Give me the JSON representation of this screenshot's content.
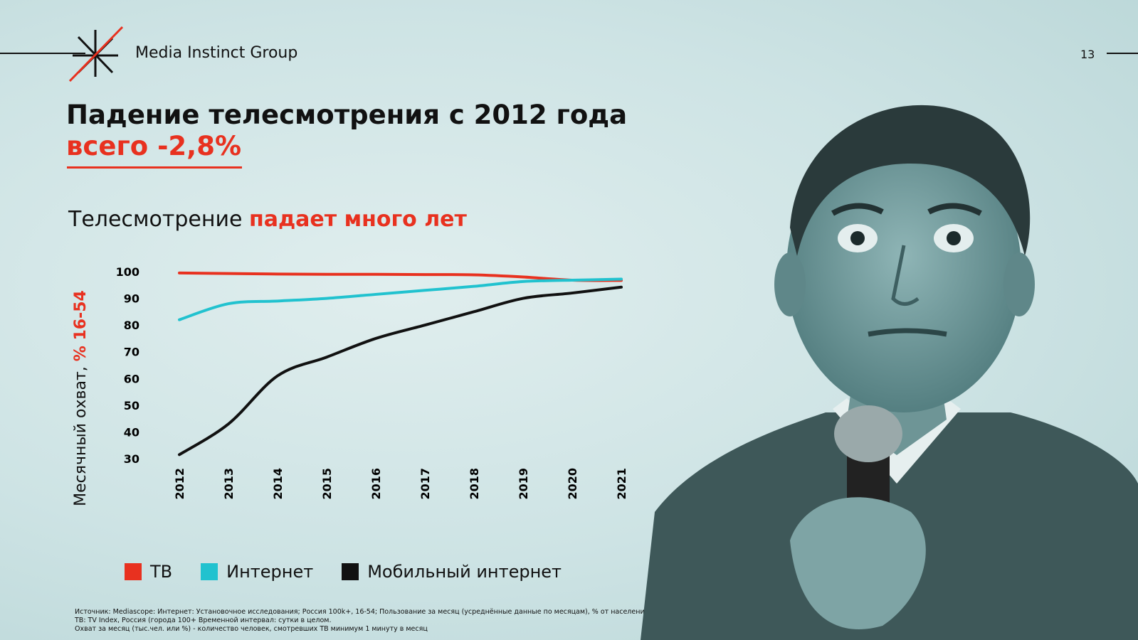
{
  "header": {
    "brand": "Media Instinct Group",
    "page_number": "13"
  },
  "title": {
    "line1": "Падение телесмотрения с 2012 года",
    "line2": "всего -2,8%"
  },
  "subtitle": {
    "plain": "Телесмотрение ",
    "accent": "падает много лет"
  },
  "colors": {
    "accent": "#e8311f",
    "tv": "#e8311f",
    "internet": "#21c2cf",
    "mobile": "#111111"
  },
  "legend": {
    "tv": "ТВ",
    "internet": "Интернет",
    "mobile": "Мобильный интернет"
  },
  "source": {
    "line1": "Источник: Mediascope: Интернет: Установочное исследования; Россия 100k+, 16-54; Пользование за месяц (усреднённые данные по месяцам), % от населения",
    "line2": "ТВ: TV Index, Россия  (города 100+ Временной интервал: сутки в целом.",
    "line3": "Охват за месяц (тыс.чел. или %) - количество человек, смотревших ТВ минимум 1 минуту в месяц"
  },
  "chart_data": {
    "type": "line",
    "ylabel_plain": "Месячный  охват, ",
    "ylabel_accent": "% 16-54",
    "x": [
      "2012",
      "2013",
      "2014",
      "2015",
      "2016",
      "2017",
      "2018",
      "2019",
      "2020",
      "2021"
    ],
    "ylim": [
      30,
      100
    ],
    "yticks": [
      100,
      90,
      80,
      70,
      60,
      50,
      40,
      30
    ],
    "grid": false,
    "series": [
      {
        "name": "ТВ",
        "key": "tv",
        "values": [
          99.5,
          99.3,
          99.1,
          99.0,
          99.0,
          98.9,
          98.8,
          98.0,
          96.8,
          96.7
        ]
      },
      {
        "name": "Интернет",
        "key": "internet",
        "values": [
          82,
          88,
          89,
          90,
          91.5,
          93,
          94.5,
          96.3,
          96.8,
          97.2
        ]
      },
      {
        "name": "Мобильный интернет",
        "key": "mobile",
        "values": [
          31.5,
          43,
          61,
          68,
          75,
          80,
          85,
          90,
          92,
          94.2
        ]
      }
    ]
  }
}
